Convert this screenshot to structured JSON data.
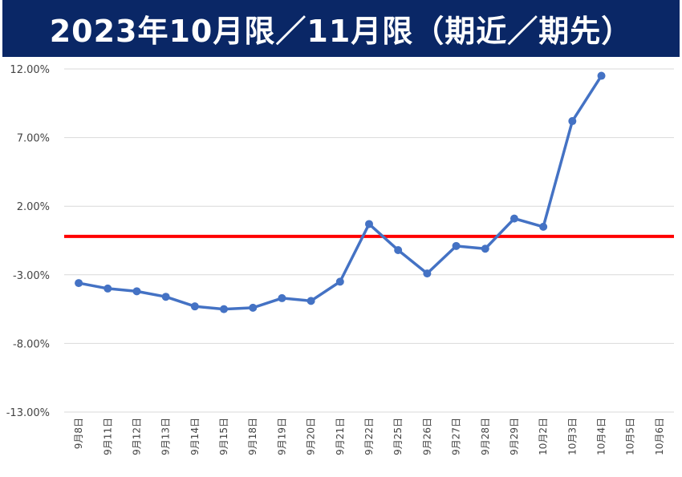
{
  "title": "2023年10月限／11月限（期近／期先）",
  "colors": {
    "title_bg": "#0a2766",
    "title_text": "#ffffff",
    "series": "#4472c4",
    "reference_line": "#ff0000",
    "grid": "#d9d9d9"
  },
  "chart_data": {
    "type": "line",
    "title": "2023年10月限／11月限（期近／期先）",
    "xlabel": "",
    "ylabel": "",
    "ylim": [
      -13,
      12
    ],
    "y_ticks": [
      12,
      7,
      2,
      -3,
      -8,
      -13
    ],
    "y_tick_labels": [
      "12.00%",
      "7.00%",
      "2.00%",
      "-3.00%",
      "-8.00%",
      "-13.00%"
    ],
    "grid": true,
    "legend": "none",
    "categories": [
      "9月8日",
      "9月11日",
      "9月12日",
      "9月13日",
      "9月14日",
      "9月15日",
      "9月18日",
      "9月19日",
      "9月20日",
      "9月21日",
      "9月22日",
      "9月25日",
      "9月26日",
      "9月27日",
      "9月28日",
      "9月29日",
      "10月2日",
      "10月3日",
      "10月4日",
      "10月5日",
      "10月6日"
    ],
    "series": [
      {
        "values": [
          -3.6,
          -4.0,
          -4.2,
          -4.6,
          -5.3,
          -5.5,
          -5.4,
          -4.7,
          -4.9,
          -3.5,
          0.7,
          -1.2,
          -2.9,
          -0.9,
          -1.1,
          1.1,
          0.5,
          8.2,
          11.5,
          null,
          null
        ]
      }
    ],
    "reference_line": {
      "y": -0.2
    }
  }
}
